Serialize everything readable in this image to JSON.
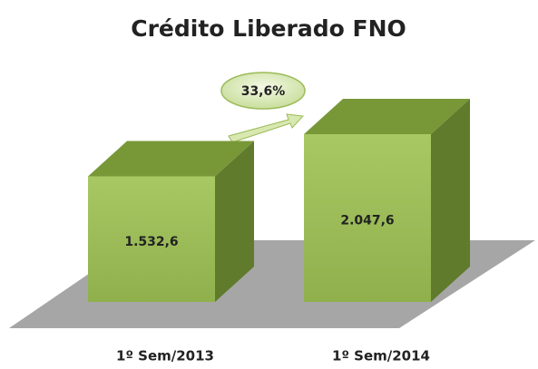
{
  "chart_data": {
    "type": "bar3d",
    "title": "Crédito Liberado FNO",
    "categories": [
      "1º Sem/2013",
      "1º Sem/2014"
    ],
    "values": [
      1532.6,
      2047.6
    ],
    "value_labels": [
      "1.532,6",
      "2.047,6"
    ],
    "annotation": "33,6%",
    "color": "#9bbb59"
  }
}
